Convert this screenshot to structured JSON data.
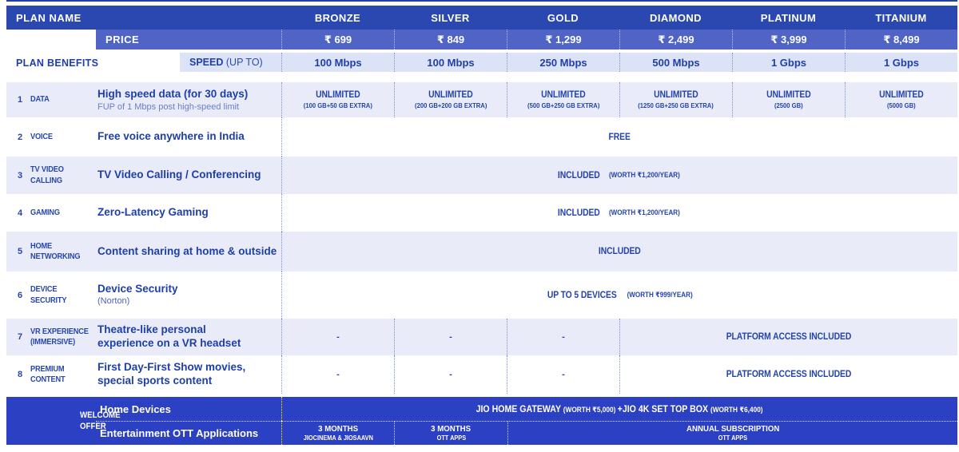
{
  "colors": {
    "header_bg": "#2b48b0",
    "price_bg": "#4f64c4",
    "speed_bg": "#dde3f6",
    "row_shade_bg": "#e9ecf8",
    "welcome_bg": "#2c40c4",
    "text_navy": "#1e3fa9",
    "text_white": "#ffffff"
  },
  "header": {
    "plan_name_label": "PLAN NAME",
    "plans": [
      "BRONZE",
      "SILVER",
      "GOLD",
      "DIAMOND",
      "PLATINUM",
      "TITANIUM"
    ]
  },
  "price_row": {
    "label": "PRICE",
    "values": [
      "₹ 699",
      "₹ 849",
      "₹ 1,299",
      "₹ 2,499",
      "₹ 3,999",
      "₹ 8,499"
    ]
  },
  "speed_row": {
    "label": "SPEED",
    "label_suffix": "(UP TO)",
    "values": [
      "100 Mbps",
      "100 Mbps",
      "250 Mbps",
      "500 Mbps",
      "1 Gbps",
      "1 Gbps"
    ]
  },
  "plan_benefits_label": "PLAN BENEFITS",
  "benefits": [
    {
      "num": "1",
      "name_lines": [
        "DATA"
      ],
      "desc_lines": [
        "High speed data (for 30 days)"
      ],
      "sub": "FUP of 1 Mbps post high-speed limit",
      "cells": [
        {
          "main": "UNLIMITED",
          "sub": "(100 GB+50 GB EXTRA)"
        },
        {
          "main": "UNLIMITED",
          "sub": "(200 GB+200 GB EXTRA)"
        },
        {
          "main": "UNLIMITED",
          "sub": "(500 GB+250 GB EXTRA)"
        },
        {
          "main": "UNLIMITED",
          "sub": "(1250 GB+250 GB EXTRA)"
        },
        {
          "main": "UNLIMITED",
          "sub": "(2500 GB)"
        },
        {
          "main": "UNLIMITED",
          "sub": "(5000 GB)"
        }
      ]
    },
    {
      "num": "2",
      "name_lines": [
        "VOICE"
      ],
      "desc_lines": [
        "Free voice anywhere in India"
      ],
      "span_main": "FREE"
    },
    {
      "num": "3",
      "name_lines": [
        "TV VIDEO",
        "CALLING"
      ],
      "desc_lines": [
        "TV Video Calling / Conferencing"
      ],
      "span_main": "INCLUDED",
      "span_sub": "(WORTH ₹1,200/YEAR)"
    },
    {
      "num": "4",
      "name_lines": [
        "GAMING"
      ],
      "desc_lines": [
        "Zero-Latency Gaming"
      ],
      "span_main": "INCLUDED",
      "span_sub": "(WORTH ₹1,200/YEAR)"
    },
    {
      "num": "5",
      "name_lines": [
        "HOME",
        "NETWORKING"
      ],
      "desc_lines": [
        "Content sharing at home & outside"
      ],
      "span_main": "INCLUDED"
    },
    {
      "num": "6",
      "name_lines": [
        "DEVICE",
        "SECURITY"
      ],
      "desc_lines": [
        "Device Security"
      ],
      "desc_suffix": "(Norton)",
      "span_main": "UP TO 5 DEVICES",
      "span_sub": "(WORTH ₹999/YEAR)"
    },
    {
      "num": "7",
      "name_lines": [
        "VR EXPERIENCE",
        "(IMMERSIVE)"
      ],
      "desc_lines": [
        "Theatre-like personal",
        "experience on a VR headset"
      ],
      "dashes": [
        "-",
        "-",
        "-"
      ],
      "partial_label": "PLATFORM ACCESS INCLUDED"
    },
    {
      "num": "8",
      "name_lines": [
        "PREMIUM",
        "CONTENT"
      ],
      "desc_lines": [
        "First Day-First Show movies,",
        "special sports content"
      ],
      "dashes": [
        "-",
        "-",
        "-"
      ],
      "partial_label": "PLATFORM ACCESS INCLUDED"
    }
  ],
  "welcome": {
    "label_lines": [
      "WELCOME",
      "OFFER"
    ],
    "home_devices_label": "Home Devices",
    "home_devices_value": [
      {
        "text": "JIO HOME GATEWAY ",
        "size": "lg"
      },
      {
        "text": "(WORTH ₹5,000) ",
        "size": "sm"
      },
      {
        "text": "+JIO 4K SET TOP BOX ",
        "size": "lg"
      },
      {
        "text": "(WORTH ₹6,400)",
        "size": "sm"
      }
    ],
    "ott_label": "Entertainment OTT Applications",
    "ott_cells": [
      {
        "main": "3 MONTHS",
        "sub": "JIOCINEMA & JIOSAAVN"
      },
      {
        "main": "3 MONTHS",
        "sub": "OTT APPS"
      },
      {
        "main": "ANNUAL SUBSCRIPTION",
        "sub": "OTT APPS"
      }
    ]
  }
}
